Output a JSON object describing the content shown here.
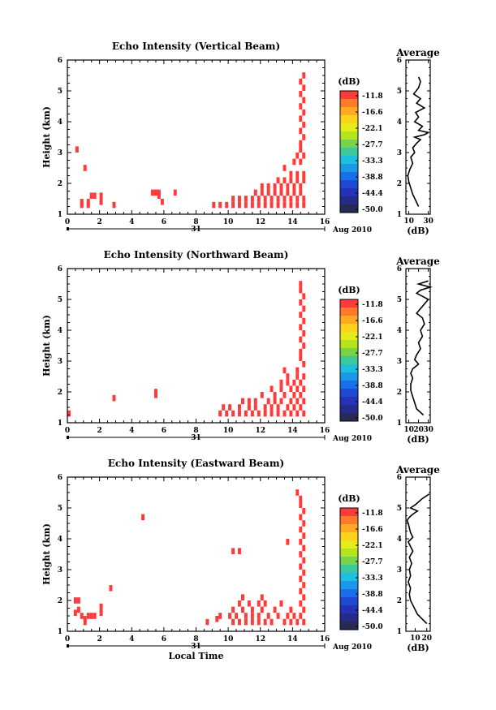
{
  "colorbar": {
    "unit": "(dB)",
    "labels": [
      "-11.8",
      "-16.6",
      "-22.1",
      "-27.7",
      "-33.3",
      "-38.8",
      "-44.4",
      "-50.0"
    ],
    "colors": [
      "#ff3a3a",
      "#ff7a2a",
      "#ffaa22",
      "#ffd21e",
      "#e6ec1a",
      "#b4e41e",
      "#78d24a",
      "#3cc89a",
      "#1ebede",
      "#1a9ae6",
      "#1a6eea",
      "#1f4ad6",
      "#2432b6",
      "#262a8a",
      "#262a55"
    ]
  },
  "mark_color": "#ff3a3a",
  "time_axis": {
    "date_label": "31",
    "month_label": "Aug 2010",
    "xlabel": "Local Time"
  },
  "height_axis_label": "Height (km)",
  "average_title": "Average",
  "average_unit": "(dB)",
  "chart_data": [
    {
      "type": "heatmap",
      "title": "Echo Intensity (Vertical Beam)",
      "xlim": [
        0,
        16
      ],
      "xticks": [
        0,
        2,
        4,
        6,
        8,
        10,
        12,
        14,
        16
      ],
      "ylim": [
        1,
        6
      ],
      "yticks": [
        1,
        2,
        3,
        4,
        5,
        6
      ],
      "cells": [
        [
          0.5,
          3.0
        ],
        [
          1.0,
          2.4
        ],
        [
          0.8,
          1.3
        ],
        [
          0.8,
          1.2
        ],
        [
          1.2,
          1.3
        ],
        [
          1.2,
          1.2
        ],
        [
          1.4,
          1.5
        ],
        [
          1.6,
          1.5
        ],
        [
          2.0,
          1.5
        ],
        [
          2.0,
          1.3
        ],
        [
          2.8,
          1.2
        ],
        [
          5.2,
          1.6
        ],
        [
          5.4,
          1.6
        ],
        [
          5.6,
          1.6
        ],
        [
          5.6,
          1.5
        ],
        [
          5.8,
          1.3
        ],
        [
          6.6,
          1.6
        ],
        [
          9.0,
          1.2
        ],
        [
          9.4,
          1.2
        ],
        [
          9.8,
          1.2
        ],
        [
          10.2,
          1.2
        ],
        [
          10.6,
          1.2
        ],
        [
          11.0,
          1.2
        ],
        [
          11.4,
          1.2
        ],
        [
          11.8,
          1.2
        ],
        [
          12.2,
          1.2
        ],
        [
          12.6,
          1.2
        ],
        [
          13.0,
          1.2
        ],
        [
          13.4,
          1.2
        ],
        [
          13.8,
          1.2
        ],
        [
          14.2,
          1.2
        ],
        [
          14.6,
          1.2
        ],
        [
          10.2,
          1.4
        ],
        [
          10.6,
          1.4
        ],
        [
          11.0,
          1.4
        ],
        [
          11.4,
          1.4
        ],
        [
          11.8,
          1.4
        ],
        [
          12.2,
          1.4
        ],
        [
          12.6,
          1.4
        ],
        [
          13.0,
          1.4
        ],
        [
          13.4,
          1.4
        ],
        [
          13.8,
          1.4
        ],
        [
          14.2,
          1.4
        ],
        [
          14.6,
          1.4
        ],
        [
          11.6,
          1.6
        ],
        [
          12.0,
          1.6
        ],
        [
          12.4,
          1.6
        ],
        [
          12.8,
          1.6
        ],
        [
          13.2,
          1.6
        ],
        [
          13.6,
          1.6
        ],
        [
          14.0,
          1.6
        ],
        [
          14.4,
          1.6
        ],
        [
          12.0,
          1.8
        ],
        [
          12.4,
          1.8
        ],
        [
          12.8,
          1.8
        ],
        [
          13.2,
          1.8
        ],
        [
          13.6,
          1.8
        ],
        [
          14.0,
          1.8
        ],
        [
          14.4,
          1.8
        ],
        [
          13.0,
          2.0
        ],
        [
          13.4,
          2.0
        ],
        [
          13.8,
          2.0
        ],
        [
          14.2,
          2.0
        ],
        [
          14.6,
          2.0
        ],
        [
          13.8,
          2.2
        ],
        [
          14.2,
          2.2
        ],
        [
          14.6,
          2.2
        ],
        [
          13.4,
          2.4
        ],
        [
          14.0,
          2.6
        ],
        [
          14.4,
          2.6
        ],
        [
          14.2,
          2.8
        ],
        [
          14.6,
          2.8
        ],
        [
          14.4,
          3.0
        ],
        [
          14.4,
          3.2
        ],
        [
          14.6,
          3.4
        ],
        [
          14.4,
          3.6
        ],
        [
          14.6,
          3.8
        ],
        [
          14.4,
          4.0
        ],
        [
          14.6,
          4.2
        ],
        [
          14.4,
          4.4
        ],
        [
          14.6,
          4.6
        ],
        [
          14.4,
          4.8
        ],
        [
          14.6,
          5.0
        ],
        [
          14.4,
          5.2
        ],
        [
          14.6,
          5.4
        ]
      ]
    },
    {
      "type": "heatmap",
      "title": "Echo Intensity (Northward Beam)",
      "xlim": [
        0,
        16
      ],
      "xticks": [
        0,
        2,
        4,
        6,
        8,
        10,
        12,
        14,
        16
      ],
      "ylim": [
        1,
        6
      ],
      "yticks": [
        1,
        2,
        3,
        4,
        5,
        6
      ],
      "cells": [
        [
          0.0,
          1.2
        ],
        [
          2.8,
          1.7
        ],
        [
          5.4,
          1.8
        ],
        [
          5.4,
          1.9
        ],
        [
          9.4,
          1.2
        ],
        [
          9.8,
          1.2
        ],
        [
          10.2,
          1.2
        ],
        [
          10.6,
          1.2
        ],
        [
          11.0,
          1.2
        ],
        [
          11.4,
          1.2
        ],
        [
          11.8,
          1.2
        ],
        [
          12.2,
          1.2
        ],
        [
          12.6,
          1.2
        ],
        [
          13.0,
          1.2
        ],
        [
          13.4,
          1.2
        ],
        [
          13.8,
          1.2
        ],
        [
          14.2,
          1.2
        ],
        [
          14.6,
          1.2
        ],
        [
          9.6,
          1.4
        ],
        [
          10.0,
          1.4
        ],
        [
          10.6,
          1.4
        ],
        [
          11.2,
          1.4
        ],
        [
          11.6,
          1.4
        ],
        [
          12.2,
          1.4
        ],
        [
          12.6,
          1.4
        ],
        [
          13.0,
          1.4
        ],
        [
          13.6,
          1.4
        ],
        [
          14.0,
          1.4
        ],
        [
          14.4,
          1.4
        ],
        [
          10.8,
          1.6
        ],
        [
          11.2,
          1.6
        ],
        [
          11.6,
          1.6
        ],
        [
          12.4,
          1.6
        ],
        [
          12.8,
          1.6
        ],
        [
          13.2,
          1.6
        ],
        [
          13.8,
          1.6
        ],
        [
          14.2,
          1.6
        ],
        [
          14.6,
          1.6
        ],
        [
          12.0,
          1.8
        ],
        [
          12.8,
          1.8
        ],
        [
          13.4,
          1.8
        ],
        [
          14.0,
          1.8
        ],
        [
          14.4,
          1.8
        ],
        [
          12.6,
          2.0
        ],
        [
          13.2,
          2.0
        ],
        [
          13.8,
          2.0
        ],
        [
          14.2,
          2.0
        ],
        [
          14.6,
          2.0
        ],
        [
          13.2,
          2.2
        ],
        [
          13.6,
          2.2
        ],
        [
          14.0,
          2.2
        ],
        [
          14.4,
          2.2
        ],
        [
          13.6,
          2.4
        ],
        [
          14.2,
          2.4
        ],
        [
          14.6,
          2.4
        ],
        [
          13.4,
          2.6
        ],
        [
          14.2,
          2.6
        ],
        [
          14.6,
          2.8
        ],
        [
          14.4,
          3.0
        ],
        [
          14.4,
          3.2
        ],
        [
          14.6,
          3.4
        ],
        [
          14.4,
          3.6
        ],
        [
          14.6,
          3.8
        ],
        [
          14.4,
          4.0
        ],
        [
          14.6,
          4.2
        ],
        [
          14.4,
          4.4
        ],
        [
          14.6,
          4.6
        ],
        [
          14.4,
          4.8
        ],
        [
          14.6,
          5.0
        ],
        [
          14.4,
          5.2
        ],
        [
          14.4,
          5.4
        ]
      ]
    },
    {
      "type": "heatmap",
      "title": "Echo Intensity (Eastward Beam)",
      "xlim": [
        0,
        16
      ],
      "xticks": [
        0,
        2,
        4,
        6,
        8,
        10,
        12,
        14,
        16
      ],
      "ylim": [
        1,
        6
      ],
      "yticks": [
        1,
        2,
        3,
        4,
        5,
        6
      ],
      "cells": [
        [
          0.4,
          1.9
        ],
        [
          0.6,
          1.9
        ],
        [
          0.4,
          1.5
        ],
        [
          0.6,
          1.6
        ],
        [
          0.8,
          1.4
        ],
        [
          1.0,
          1.3
        ],
        [
          1.0,
          1.2
        ],
        [
          1.2,
          1.4
        ],
        [
          1.4,
          1.4
        ],
        [
          1.6,
          1.4
        ],
        [
          2.0,
          1.7
        ],
        [
          2.0,
          1.5
        ],
        [
          2.6,
          2.3
        ],
        [
          4.6,
          4.6
        ],
        [
          8.6,
          1.2
        ],
        [
          9.2,
          1.3
        ],
        [
          9.4,
          1.4
        ],
        [
          10.2,
          1.2
        ],
        [
          10.6,
          1.2
        ],
        [
          11.0,
          1.2
        ],
        [
          11.4,
          1.2
        ],
        [
          11.8,
          1.2
        ],
        [
          12.2,
          1.2
        ],
        [
          12.6,
          1.2
        ],
        [
          13.4,
          1.2
        ],
        [
          13.8,
          1.2
        ],
        [
          14.2,
          1.2
        ],
        [
          14.6,
          1.2
        ],
        [
          10.0,
          1.4
        ],
        [
          10.4,
          1.4
        ],
        [
          11.0,
          1.4
        ],
        [
          11.4,
          1.4
        ],
        [
          11.8,
          1.4
        ],
        [
          12.4,
          1.4
        ],
        [
          13.0,
          1.4
        ],
        [
          13.6,
          1.4
        ],
        [
          14.0,
          1.4
        ],
        [
          14.4,
          1.4
        ],
        [
          10.2,
          1.6
        ],
        [
          10.8,
          1.6
        ],
        [
          11.4,
          1.6
        ],
        [
          12.0,
          1.6
        ],
        [
          12.8,
          1.6
        ],
        [
          13.8,
          1.6
        ],
        [
          14.6,
          1.6
        ],
        [
          10.6,
          1.8
        ],
        [
          11.2,
          1.8
        ],
        [
          11.8,
          1.8
        ],
        [
          12.2,
          1.8
        ],
        [
          13.2,
          1.8
        ],
        [
          14.4,
          1.8
        ],
        [
          10.8,
          2.0
        ],
        [
          12.0,
          2.0
        ],
        [
          14.6,
          2.0
        ],
        [
          10.2,
          3.5
        ],
        [
          10.6,
          3.5
        ],
        [
          13.6,
          3.8
        ],
        [
          14.4,
          2.2
        ],
        [
          14.6,
          2.4
        ],
        [
          14.4,
          2.6
        ],
        [
          14.6,
          2.8
        ],
        [
          14.4,
          3.0
        ],
        [
          14.6,
          3.2
        ],
        [
          14.4,
          3.4
        ],
        [
          14.6,
          3.6
        ],
        [
          14.4,
          3.8
        ],
        [
          14.6,
          4.0
        ],
        [
          14.4,
          4.2
        ],
        [
          14.6,
          4.4
        ],
        [
          14.4,
          4.6
        ],
        [
          14.6,
          4.8
        ],
        [
          14.4,
          5.0
        ],
        [
          14.4,
          5.2
        ],
        [
          14.2,
          5.4
        ]
      ]
    },
    {
      "type": "line",
      "title": "Average",
      "xlim": [
        7,
        32
      ],
      "xticks": [
        10,
        30
      ],
      "ylim": [
        1,
        6
      ],
      "yticks": [
        1,
        2,
        3,
        4,
        5,
        6
      ],
      "x": [
        20,
        17,
        14,
        12,
        10,
        9,
        11,
        14,
        12,
        16,
        14,
        18,
        22,
        16,
        26,
        30,
        20,
        24,
        16,
        20,
        17,
        26,
        18,
        22,
        15,
        20,
        22,
        20
      ],
      "y": [
        1.25,
        1.45,
        1.65,
        1.85,
        2.05,
        2.25,
        2.45,
        2.65,
        2.85,
        3.0,
        3.15,
        3.3,
        3.42,
        3.5,
        3.58,
        3.65,
        3.72,
        3.85,
        4.0,
        4.15,
        4.3,
        4.45,
        4.6,
        4.75,
        4.9,
        5.1,
        5.3,
        5.45
      ]
    },
    {
      "type": "line",
      "title": "Average",
      "xlim": [
        7,
        32
      ],
      "xticks": [
        10,
        20,
        30
      ],
      "ylim": [
        1,
        6
      ],
      "yticks": [
        1,
        2,
        3,
        4,
        5,
        6
      ],
      "x": [
        25,
        18,
        16,
        14,
        12,
        12,
        14,
        12,
        14,
        20,
        16,
        18,
        22,
        20,
        24,
        22,
        26,
        24,
        18,
        22,
        26,
        30,
        24,
        18,
        22,
        32,
        20,
        30
      ],
      "y": [
        1.25,
        1.45,
        1.65,
        1.85,
        2.05,
        2.25,
        2.45,
        2.6,
        2.75,
        2.9,
        3.05,
        3.2,
        3.4,
        3.6,
        3.8,
        4.0,
        4.2,
        4.4,
        4.55,
        4.7,
        4.85,
        5.0,
        5.1,
        5.2,
        5.3,
        5.4,
        5.5,
        5.6
      ]
    },
    {
      "type": "line",
      "title": "Average",
      "xlim": [
        2,
        23
      ],
      "xticks": [
        10,
        20
      ],
      "ylim": [
        1,
        6
      ],
      "yticks": [
        1,
        2,
        3,
        4,
        5,
        6
      ],
      "x": [
        20,
        16,
        12,
        10,
        8,
        6,
        5,
        6,
        4,
        6,
        5,
        7,
        5,
        8,
        6,
        4,
        8,
        6,
        5,
        4,
        3,
        5,
        8,
        12,
        6,
        10,
        16,
        22
      ],
      "y": [
        1.25,
        1.4,
        1.55,
        1.7,
        1.85,
        2.0,
        2.2,
        2.4,
        2.6,
        2.8,
        3.0,
        3.2,
        3.4,
        3.6,
        3.75,
        3.9,
        4.05,
        4.2,
        4.35,
        4.5,
        4.6,
        4.7,
        4.8,
        4.9,
        5.0,
        5.1,
        5.3,
        5.45
      ]
    }
  ]
}
